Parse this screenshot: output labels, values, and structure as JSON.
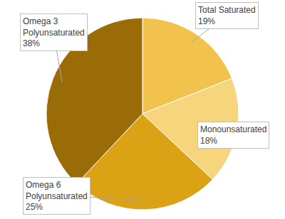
{
  "chart_data": {
    "type": "pie",
    "categories": [
      "Total Saturated",
      "Monounsaturated",
      "Omega 6 Polyunsaturated",
      "Omega 3 Polyunsaturated"
    ],
    "values": [
      19,
      18,
      25,
      38
    ],
    "value_labels": [
      "19%",
      "18%",
      "25%",
      "38%"
    ],
    "colors": [
      "#f2c34c",
      "#f7d57c",
      "#dca216",
      "#996c08"
    ],
    "data_labels": true
  }
}
